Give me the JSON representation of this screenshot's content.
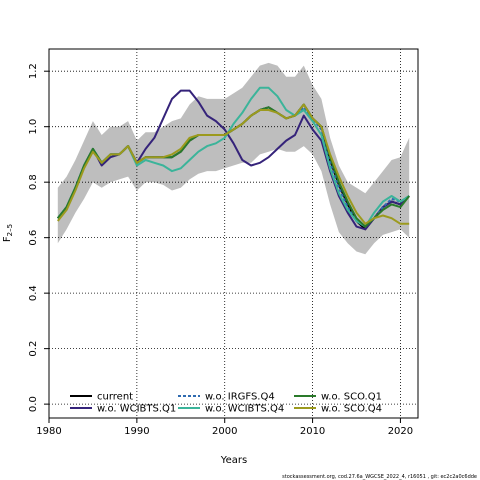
{
  "chart_data": {
    "type": "line",
    "xlabel": "Years",
    "ylabel": "F",
    "ylabel_sub": "2–5",
    "xlim": [
      1980,
      2022
    ],
    "ylim": [
      -0.05,
      1.28
    ],
    "xticks": [
      1980,
      1990,
      2000,
      2010,
      2020
    ],
    "yticks": [
      0.0,
      0.2,
      0.4,
      0.6,
      0.8,
      1.0,
      1.2
    ],
    "ytick_labels": [
      "0.0",
      "0.2",
      "0.4",
      "0.6",
      "0.8",
      "1.0",
      "1.2"
    ],
    "grid": true,
    "legend_placement": "bottom-left",
    "band": {
      "x": [
        1981,
        1982,
        1983,
        1984,
        1985,
        1986,
        1987,
        1988,
        1989,
        1990,
        1991,
        1992,
        1993,
        1994,
        1995,
        1996,
        1997,
        1998,
        1999,
        2000,
        2001,
        2002,
        2003,
        2004,
        2005,
        2006,
        2007,
        2008,
        2009,
        2010,
        2011,
        2012,
        2013,
        2014,
        2015,
        2016,
        2017,
        2018,
        2019,
        2020,
        2021
      ],
      "upper": [
        0.78,
        0.82,
        0.88,
        0.95,
        1.02,
        0.97,
        1.0,
        1.0,
        1.02,
        0.95,
        0.98,
        0.98,
        1.0,
        1.02,
        1.03,
        1.08,
        1.11,
        1.1,
        1.1,
        1.1,
        1.12,
        1.14,
        1.18,
        1.22,
        1.23,
        1.22,
        1.18,
        1.18,
        1.22,
        1.15,
        1.1,
        0.96,
        0.86,
        0.8,
        0.78,
        0.76,
        0.8,
        0.84,
        0.88,
        0.89,
        0.96
      ],
      "lower": [
        0.58,
        0.63,
        0.69,
        0.74,
        0.8,
        0.78,
        0.8,
        0.81,
        0.82,
        0.77,
        0.8,
        0.8,
        0.79,
        0.77,
        0.78,
        0.81,
        0.83,
        0.84,
        0.84,
        0.85,
        0.86,
        0.87,
        0.87,
        0.9,
        0.91,
        0.92,
        0.91,
        0.91,
        0.93,
        0.9,
        0.84,
        0.72,
        0.62,
        0.58,
        0.55,
        0.54,
        0.58,
        0.61,
        0.62,
        0.63,
        0.6
      ],
      "color": "#bebebe"
    },
    "x": [
      1981,
      1982,
      1983,
      1984,
      1985,
      1986,
      1987,
      1988,
      1989,
      1990,
      1991,
      1992,
      1993,
      1994,
      1995,
      1996,
      1997,
      1998,
      1999,
      2000,
      2001,
      2002,
      2003,
      2004,
      2005,
      2006,
      2007,
      2008,
      2009,
      2010,
      2011,
      2012,
      2013,
      2014,
      2015,
      2016,
      2017,
      2018,
      2019,
      2020,
      2021
    ],
    "series": [
      {
        "name": "current",
        "color": "#000000",
        "dash": "",
        "values": [
          0.67,
          0.71,
          0.78,
          0.86,
          0.92,
          0.87,
          0.9,
          0.9,
          0.93,
          0.87,
          0.89,
          0.89,
          0.89,
          0.89,
          0.91,
          0.95,
          0.97,
          0.97,
          0.97,
          0.97,
          0.99,
          1.01,
          1.04,
          1.06,
          1.07,
          1.05,
          1.03,
          1.04,
          1.08,
          1.03,
          1.0,
          0.88,
          0.79,
          0.72,
          0.66,
          0.63,
          0.67,
          0.71,
          0.73,
          0.72,
          0.75
        ]
      },
      {
        "name": "w.o. WCIBTS.Q1",
        "color": "#35237a",
        "dash": "",
        "values": [
          0.67,
          0.71,
          0.78,
          0.86,
          0.92,
          0.86,
          0.89,
          0.9,
          0.93,
          0.87,
          0.92,
          0.96,
          1.03,
          1.1,
          1.13,
          1.13,
          1.09,
          1.04,
          1.02,
          0.99,
          0.94,
          0.88,
          0.86,
          0.87,
          0.89,
          0.92,
          0.95,
          0.97,
          1.04,
          0.99,
          0.95,
          0.84,
          0.75,
          0.69,
          0.64,
          0.63,
          0.67,
          0.71,
          0.73,
          0.72,
          0.75
        ]
      },
      {
        "name": "w.o. IRGFS.Q4",
        "color": "#2f6bb0",
        "dash": "3,2",
        "values": [
          0.67,
          0.71,
          0.78,
          0.86,
          0.92,
          0.87,
          0.9,
          0.9,
          0.93,
          0.87,
          0.89,
          0.89,
          0.89,
          0.89,
          0.91,
          0.95,
          0.97,
          0.97,
          0.97,
          0.97,
          0.99,
          1.01,
          1.04,
          1.06,
          1.07,
          1.05,
          1.03,
          1.04,
          1.07,
          1.03,
          0.99,
          0.87,
          0.78,
          0.71,
          0.66,
          0.64,
          0.67,
          0.71,
          0.74,
          0.73,
          0.75
        ]
      },
      {
        "name": "w.o. WCIBTS.Q4",
        "color": "#3bb49a",
        "dash": "",
        "values": [
          0.67,
          0.71,
          0.78,
          0.86,
          0.92,
          0.87,
          0.9,
          0.9,
          0.93,
          0.86,
          0.88,
          0.87,
          0.86,
          0.84,
          0.85,
          0.88,
          0.91,
          0.93,
          0.94,
          0.96,
          1.01,
          1.05,
          1.1,
          1.14,
          1.14,
          1.11,
          1.06,
          1.04,
          1.06,
          1.02,
          0.97,
          0.85,
          0.76,
          0.7,
          0.66,
          0.64,
          0.69,
          0.73,
          0.75,
          0.73,
          0.75
        ]
      },
      {
        "name": "w.o. SCO.Q1",
        "color": "#2a7a2a",
        "dash": "",
        "values": [
          0.67,
          0.71,
          0.78,
          0.86,
          0.92,
          0.87,
          0.9,
          0.9,
          0.93,
          0.87,
          0.89,
          0.89,
          0.89,
          0.89,
          0.91,
          0.95,
          0.97,
          0.97,
          0.97,
          0.97,
          0.99,
          1.01,
          1.04,
          1.06,
          1.07,
          1.05,
          1.03,
          1.04,
          1.08,
          1.03,
          1.0,
          0.89,
          0.8,
          0.73,
          0.67,
          0.64,
          0.67,
          0.7,
          0.72,
          0.71,
          0.75
        ]
      },
      {
        "name": "w.o. SCO.Q4",
        "color": "#9c9a1e",
        "dash": "",
        "values": [
          0.66,
          0.7,
          0.77,
          0.85,
          0.91,
          0.87,
          0.9,
          0.9,
          0.93,
          0.87,
          0.89,
          0.89,
          0.89,
          0.9,
          0.92,
          0.96,
          0.97,
          0.97,
          0.97,
          0.97,
          0.99,
          1.01,
          1.04,
          1.06,
          1.06,
          1.05,
          1.03,
          1.04,
          1.08,
          1.03,
          1.0,
          0.9,
          0.82,
          0.75,
          0.69,
          0.65,
          0.67,
          0.68,
          0.67,
          0.65,
          0.65
        ]
      }
    ]
  },
  "footer": "stockassessment.org,  cod.27.6a_WGCSE_2022_4,  r16051 ,  git:  ec2c2a0c6dde"
}
